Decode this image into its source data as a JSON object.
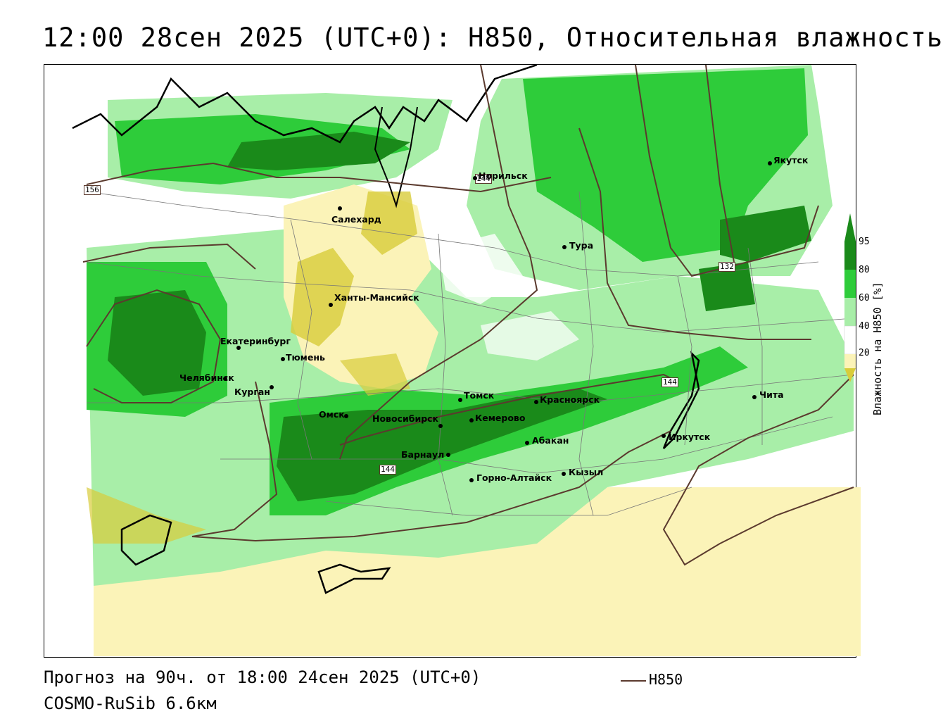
{
  "header": {
    "title": "12:00 28сен 2025 (UTC+0): H850, Относительная влажность"
  },
  "footer": {
    "forecast": "Прогноз на 90ч. от 18:00 24сен 2025 (UTC+0)",
    "model": "COSMO-RuSib 6.6км",
    "legend_label": "H850"
  },
  "colorbar": {
    "label": "Влажность на H850 [%]",
    "ticks": [
      "95",
      "80",
      "60",
      "40",
      "20"
    ],
    "colors": {
      "c95": "#1a8a1a",
      "c80": "#2ecc3a",
      "c60": "#a8eea8",
      "c40": "#ffffff",
      "c20": "#fbf3b8",
      "c0": "#d8cc3a"
    }
  },
  "contours": {
    "labels": [
      "156",
      "144",
      "132",
      "144",
      "144"
    ],
    "color": "#5b3a2e"
  },
  "cities": [
    {
      "name": "Норильск"
    },
    {
      "name": "Якутск"
    },
    {
      "name": "Салехард"
    },
    {
      "name": "Тура"
    },
    {
      "name": "Ханты-Мансийск"
    },
    {
      "name": "Екатеринбург"
    },
    {
      "name": "Тюмень"
    },
    {
      "name": "Челябинск"
    },
    {
      "name": "Курган"
    },
    {
      "name": "Омск"
    },
    {
      "name": "Новосибирск"
    },
    {
      "name": "Томск"
    },
    {
      "name": "Кемерово"
    },
    {
      "name": "Красноярск"
    },
    {
      "name": "Барнаул"
    },
    {
      "name": "Абакан"
    },
    {
      "name": "Горно-Алтайск"
    },
    {
      "name": "Кызыл"
    },
    {
      "name": "Иркутск"
    },
    {
      "name": "Чита"
    }
  ]
}
